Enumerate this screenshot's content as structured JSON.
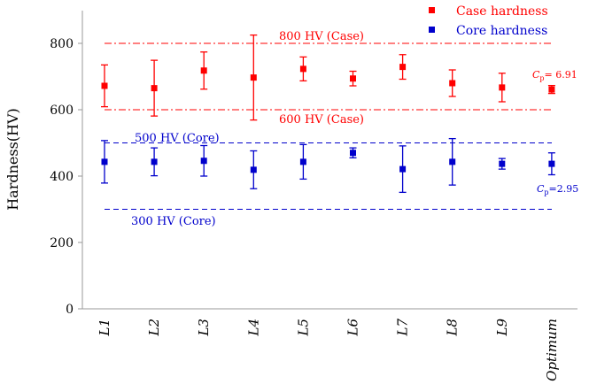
{
  "chart_data": {
    "type": "scatter",
    "title": "",
    "xlabel": "",
    "ylabel": "Hardness(HV)",
    "ylim": [
      0,
      900
    ],
    "yticks": [
      0,
      200,
      400,
      600,
      800
    ],
    "categories": [
      "L1",
      "L2",
      "L3",
      "L4",
      "L5",
      "L6",
      "L7",
      "L8",
      "L9",
      "Optimum"
    ],
    "series": [
      {
        "name": "Case hardness",
        "color": "#ff0000",
        "values": [
          672,
          665,
          718,
          697,
          723,
          694,
          729,
          680,
          667,
          661
        ],
        "errors": [
          63,
          84,
          56,
          128,
          36,
          22,
          37,
          40,
          43,
          12
        ]
      },
      {
        "name": "Core hardness",
        "color": "#0000cc",
        "values": [
          443,
          443,
          446,
          419,
          443,
          470,
          421,
          443,
          437,
          437
        ],
        "errors": [
          64,
          42,
          46,
          57,
          52,
          15,
          70,
          70,
          16,
          33
        ]
      }
    ],
    "reference_lines": [
      {
        "label": "800 HV (Case)",
        "value": 800,
        "color": "#ff0000",
        "style": "dashdot"
      },
      {
        "label": "600 HV (Case)",
        "value": 600,
        "color": "#ff0000",
        "style": "dashdot"
      },
      {
        "label": "500 HV (Core)",
        "value": 500,
        "color": "#0000cc",
        "style": "dashed"
      },
      {
        "label": "300 HV (Core)",
        "value": 300,
        "color": "#0000cc",
        "style": "dashed"
      }
    ],
    "annotations": [
      {
        "symbol": "C",
        "subscript": "p",
        "text": "= 6.91",
        "color": "#ff0000"
      },
      {
        "symbol": "C",
        "subscript": "p",
        "text": "=2.95",
        "color": "#0000cc"
      }
    ],
    "legend_position": "top-right"
  }
}
